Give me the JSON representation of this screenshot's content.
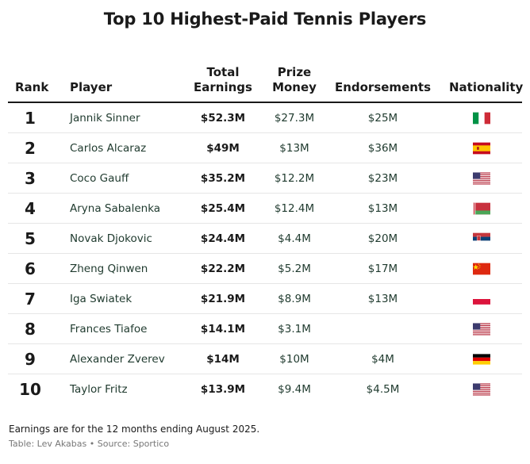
{
  "title": "Top 10 Highest-Paid Tennis Players",
  "columns": {
    "rank": "Rank",
    "player": "Player",
    "total_line1": "Total",
    "total_line2": "Earnings",
    "prize_line1": "Prize",
    "prize_line2": "Money",
    "endorsements": "Endorsements",
    "nationality": "Nationality"
  },
  "chart_data": {
    "type": "table",
    "title": "Top 10 Highest-Paid Tennis Players",
    "columns": [
      "Rank",
      "Player",
      "Total Earnings",
      "Prize Money",
      "Endorsements",
      "Nationality"
    ],
    "rows": [
      {
        "rank": "1",
        "player": "Jannik Sinner",
        "total": "$52.3M",
        "prize": "$27.3M",
        "endorsements": "$25M",
        "flag": "italy-flag-icon"
      },
      {
        "rank": "2",
        "player": "Carlos Alcaraz",
        "total": "$49M",
        "prize": "$13M",
        "endorsements": "$36M",
        "flag": "spain-flag-icon"
      },
      {
        "rank": "3",
        "player": "Coco Gauff",
        "total": "$35.2M",
        "prize": "$12.2M",
        "endorsements": "$23M",
        "flag": "usa-flag-icon"
      },
      {
        "rank": "4",
        "player": "Aryna Sabalenka",
        "total": "$25.4M",
        "prize": "$12.4M",
        "endorsements": "$13M",
        "flag": "belarus-flag-icon"
      },
      {
        "rank": "5",
        "player": "Novak Djokovic",
        "total": "$24.4M",
        "prize": "$4.4M",
        "endorsements": "$20M",
        "flag": "serbia-flag-icon"
      },
      {
        "rank": "6",
        "player": "Zheng Qinwen",
        "total": "$22.2M",
        "prize": "$5.2M",
        "endorsements": "$17M",
        "flag": "china-flag-icon"
      },
      {
        "rank": "7",
        "player": "Iga Swiatek",
        "total": "$21.9M",
        "prize": "$8.9M",
        "endorsements": "$13M",
        "flag": "poland-flag-icon"
      },
      {
        "rank": "8",
        "player": "Frances Tiafoe",
        "total": "$14.1M",
        "prize": "$3.1M",
        "endorsements": "",
        "flag": "usa-flag-icon"
      },
      {
        "rank": "9",
        "player": "Alexander Zverev",
        "total": "$14M",
        "prize": "$10M",
        "endorsements": "$4M",
        "flag": "germany-flag-icon"
      },
      {
        "rank": "10",
        "player": "Taylor Fritz",
        "total": "$13.9M",
        "prize": "$9.4M",
        "endorsements": "$4.5M",
        "flag": "usa-flag-icon"
      }
    ]
  },
  "footnote": "Earnings are for the 12 months ending August 2025.",
  "source": "Table: Lev Akabas • Source: Sportico"
}
